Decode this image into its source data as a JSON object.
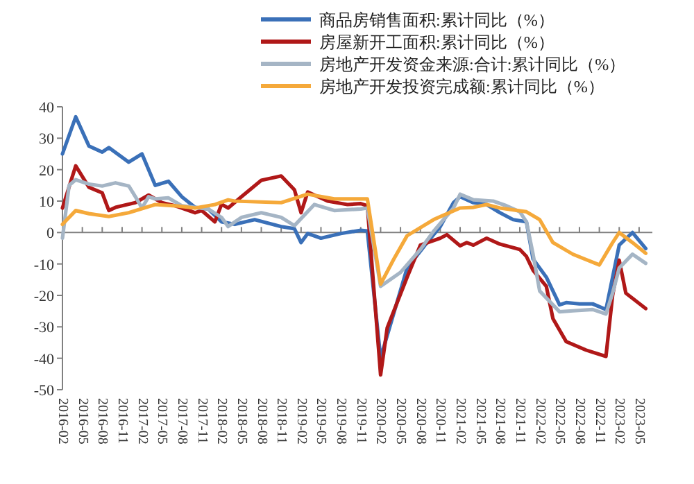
{
  "chart_data": {
    "type": "line",
    "legend": "top",
    "ylim": [
      -50,
      40
    ],
    "yticks": [
      -50,
      -40,
      -30,
      -20,
      -10,
      0,
      10,
      20,
      30,
      40
    ],
    "xlim": [
      "2016-02",
      "2023-07"
    ],
    "xticks": [
      "2016-02",
      "2016-05",
      "2016-08",
      "2016-11",
      "2017-02",
      "2017-05",
      "2017-08",
      "2017-11",
      "2018-02",
      "2018-05",
      "2018-08",
      "2018-11",
      "2019-02",
      "2019-05",
      "2019-08",
      "2019-11",
      "2020-02",
      "2020-05",
      "2020-08",
      "2020-11",
      "2021-02",
      "2021-05",
      "2021-08",
      "2021-11",
      "2022-02",
      "2022-05",
      "2022-08",
      "2022-11",
      "2023-02",
      "2023-05"
    ],
    "series": [
      {
        "name": "商品房销售面积:累计同比（%）",
        "color": "#3a70b8",
        "x": [
          "2016-02",
          "2016-04",
          "2016-06",
          "2016-08",
          "2016-09",
          "2016-12",
          "2017-02",
          "2017-04",
          "2017-06",
          "2017-08",
          "2017-10",
          "2017-12",
          "2018-02",
          "2018-04",
          "2018-07",
          "2018-11",
          "2019-01",
          "2019-02",
          "2019-03",
          "2019-05",
          "2019-08",
          "2019-11",
          "2019-12",
          "2020-02",
          "2020-06",
          "2020-09",
          "2020-11",
          "2021-01",
          "2021-02",
          "2021-04",
          "2021-06",
          "2021-08",
          "2021-10",
          "2021-12",
          "2022-01",
          "2022-03",
          "2022-05",
          "2022-06",
          "2022-08",
          "2022-10",
          "2022-12",
          "2023-02",
          "2023-04",
          "2023-06"
        ],
        "values": [
          25,
          36.8,
          27.5,
          25.6,
          27,
          22.4,
          25,
          15,
          16.3,
          11.4,
          8,
          7.5,
          3.4,
          2.6,
          4.1,
          1.9,
          1.2,
          -3.2,
          -0.3,
          -1.8,
          -0.3,
          0.7,
          0.5,
          -39.9,
          -11.3,
          -3.2,
          1.9,
          9.5,
          11.4,
          9.5,
          8.9,
          6.3,
          4.1,
          3.4,
          -8.4,
          -14.2,
          -23,
          -22.3,
          -22.7,
          -22.7,
          -24.5,
          -4,
          0,
          -5.1
        ]
      },
      {
        "name": "房屋新开工面积:累计同比（%）",
        "color": "#b01818",
        "x": [
          "2016-02",
          "2016-04",
          "2016-06",
          "2016-08",
          "2016-09",
          "2016-10",
          "2017-01",
          "2017-03",
          "2017-05",
          "2017-07",
          "2017-10",
          "2017-11",
          "2018-01",
          "2018-02",
          "2018-03",
          "2018-05",
          "2018-08",
          "2018-11",
          "2019-01",
          "2019-02",
          "2019-03",
          "2019-06",
          "2019-09",
          "2019-11",
          "2019-12",
          "2020-02",
          "2020-03",
          "2020-06",
          "2020-08",
          "2020-11",
          "2020-12",
          "2021-02",
          "2021-03",
          "2021-04",
          "2021-06",
          "2021-08",
          "2021-11",
          "2021-12",
          "2022-01",
          "2022-03",
          "2022-04",
          "2022-06",
          "2022-09",
          "2022-12",
          "2023-01",
          "2023-02",
          "2023-03",
          "2023-06"
        ],
        "values": [
          7.8,
          21.2,
          14.4,
          12.6,
          7,
          8,
          9.5,
          11.9,
          9.5,
          8.5,
          6.3,
          7,
          3.4,
          9,
          7.8,
          11.4,
          16.6,
          18,
          13.6,
          6.3,
          12.9,
          10,
          8.9,
          9.2,
          8.5,
          -45.3,
          -30.3,
          -14.2,
          -4,
          -1.8,
          -0.7,
          -4.2,
          -3.2,
          -4,
          -1.8,
          -3.7,
          -5.4,
          -7.6,
          -12,
          -17.1,
          -27.4,
          -34.7,
          -37.4,
          -39.4,
          -20,
          -8.8,
          -19.3,
          -24.2
        ]
      },
      {
        "name": "房地产开发资金来源:合计:累计同比（%）",
        "color": "#a5b5c5",
        "x": [
          "2016-02",
          "2016-03",
          "2016-04",
          "2016-06",
          "2016-08",
          "2016-10",
          "2016-12",
          "2017-01",
          "2017-02",
          "2017-03",
          "2017-04",
          "2017-06",
          "2017-08",
          "2017-10",
          "2017-12",
          "2018-02",
          "2018-03",
          "2018-05",
          "2018-08",
          "2018-11",
          "2019-01",
          "2019-04",
          "2019-07",
          "2019-11",
          "2019-12",
          "2020-02",
          "2020-05",
          "2020-08",
          "2020-10",
          "2021-01",
          "2021-02",
          "2021-04",
          "2021-07",
          "2021-09",
          "2021-11",
          "2021-12",
          "2022-01",
          "2022-02",
          "2022-05",
          "2022-07",
          "2022-10",
          "2022-12",
          "2023-01",
          "2023-02",
          "2023-04",
          "2023-06"
        ],
        "values": [
          -1.8,
          15,
          16.8,
          15.4,
          14.8,
          15.8,
          14.8,
          11.4,
          7.8,
          11.4,
          10.7,
          11,
          8.5,
          8,
          7.5,
          4.8,
          1.9,
          4.8,
          6.3,
          4.8,
          2.2,
          8.9,
          7,
          7.5,
          7.8,
          -17.1,
          -12.7,
          -5.4,
          0.4,
          7.8,
          12.2,
          10.4,
          10,
          8.5,
          6.6,
          3.4,
          -6.9,
          -18.6,
          -25.2,
          -24.9,
          -24.5,
          -25.9,
          -19.3,
          -11.3,
          -6.9,
          -9.8
        ]
      },
      {
        "name": "房地产开发投资完成额:累计同比（%）",
        "color": "#f5a93a",
        "x": [
          "2016-02",
          "2016-04",
          "2016-06",
          "2016-09",
          "2016-12",
          "2017-04",
          "2017-07",
          "2017-10",
          "2018-01",
          "2018-03",
          "2018-04",
          "2018-11",
          "2019-03",
          "2019-07",
          "2019-12",
          "2020-02",
          "2020-04",
          "2020-06",
          "2020-10",
          "2021-02",
          "2021-04",
          "2021-06",
          "2021-08",
          "2021-12",
          "2022-02",
          "2022-04",
          "2022-07",
          "2022-09",
          "2022-11",
          "2023-01",
          "2023-02",
          "2023-04",
          "2023-06"
        ],
        "values": [
          2.6,
          7,
          6,
          5.1,
          6.3,
          8.9,
          8.5,
          7.8,
          8.9,
          10.4,
          10,
          9.5,
          12.2,
          10.7,
          10.7,
          -16.4,
          -8.4,
          -1,
          4.1,
          7.8,
          8,
          8.9,
          7.8,
          6.6,
          4.1,
          -3.2,
          -6.9,
          -8.6,
          -10.3,
          -3.2,
          0,
          -3.2,
          -6.6
        ]
      }
    ]
  }
}
